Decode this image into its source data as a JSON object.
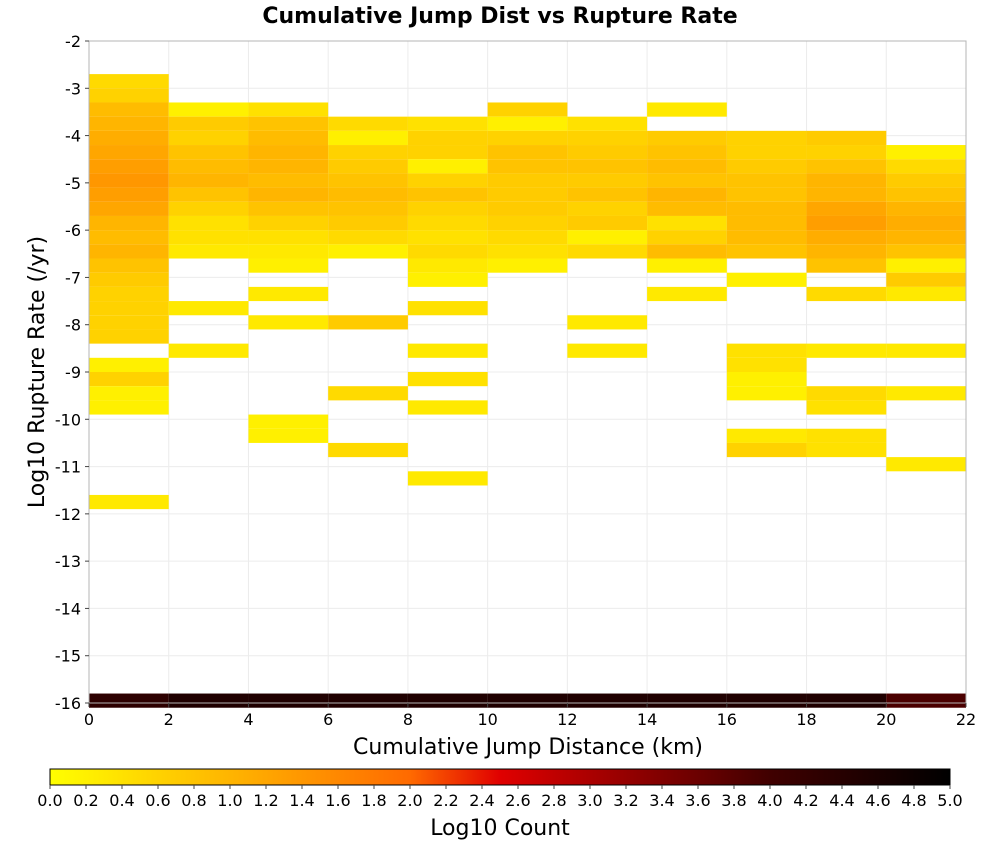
{
  "chart_data": {
    "type": "heatmap",
    "title": "Cumulative Jump Dist vs Rupture Rate",
    "xlabel": "Cumulative Jump Distance (km)",
    "ylabel": "Log10 Rupture Rate (/yr)",
    "xlim": [
      0,
      22
    ],
    "ylim": [
      -16,
      -2
    ],
    "x_bin_width": 2,
    "y_bin_height": 0.3,
    "grid": true,
    "xticks": [
      "0",
      "2",
      "4",
      "6",
      "8",
      "10",
      "12",
      "14",
      "16",
      "18",
      "20",
      "22"
    ],
    "yticks": [
      "-2",
      "-3",
      "-4",
      "-5",
      "-6",
      "-7",
      "-8",
      "-9",
      "-10",
      "-11",
      "-12",
      "-13",
      "-14",
      "-15",
      "-16"
    ],
    "colorbar": {
      "label": "Log10 Count",
      "range": [
        0,
        5
      ],
      "ticks": [
        "0.0",
        "0.2",
        "0.4",
        "0.6",
        "0.8",
        "1.0",
        "1.2",
        "1.4",
        "1.6",
        "1.8",
        "2.0",
        "2.2",
        "2.4",
        "2.6",
        "2.8",
        "3.0",
        "3.2",
        "3.4",
        "3.6",
        "3.8",
        "4.0",
        "4.2",
        "4.6",
        "4.8",
        "5.0"
      ],
      "ticks_full": [
        "0.0",
        "0.2",
        "0.4",
        "0.6",
        "0.8",
        "1.0",
        "1.2",
        "1.4",
        "1.6",
        "1.8",
        "2.0",
        "2.2",
        "2.4",
        "2.6",
        "2.8",
        "3.0",
        "3.2",
        "3.4",
        "3.6",
        "3.8",
        "4.0",
        "4.2",
        "4.4",
        "4.6",
        "4.8",
        "5.0"
      ]
    },
    "colorscale": [
      "#ffff00",
      "#ff6a00",
      "#e00000",
      "#400000",
      "#000000"
    ],
    "columns": [
      {
        "x0": 0,
        "cells": [
          [
            -2.85,
            0.5
          ],
          [
            -3.15,
            0.6
          ],
          [
            -3.45,
            0.9
          ],
          [
            -3.75,
            1.0
          ],
          [
            -4.05,
            1.1
          ],
          [
            -4.35,
            1.2
          ],
          [
            -4.65,
            1.3
          ],
          [
            -4.95,
            1.4
          ],
          [
            -5.25,
            1.3
          ],
          [
            -5.55,
            1.2
          ],
          [
            -5.85,
            1.0
          ],
          [
            -6.15,
            0.9
          ],
          [
            -6.45,
            1.0
          ],
          [
            -6.75,
            0.8
          ],
          [
            -7.05,
            0.7
          ],
          [
            -7.35,
            0.6
          ],
          [
            -7.65,
            0.6
          ],
          [
            -7.95,
            0.6
          ],
          [
            -8.25,
            0.6
          ],
          [
            -8.85,
            0.2
          ],
          [
            -9.15,
            0.6
          ],
          [
            -9.45,
            0.2
          ],
          [
            -9.75,
            0.2
          ],
          [
            -11.75,
            0.3
          ],
          [
            -15.95,
            4.3
          ]
        ]
      },
      {
        "x0": 2,
        "cells": [
          [
            -3.45,
            0.2
          ],
          [
            -3.75,
            0.7
          ],
          [
            -4.05,
            0.6
          ],
          [
            -4.35,
            0.8
          ],
          [
            -4.65,
            0.9
          ],
          [
            -4.95,
            1.0
          ],
          [
            -5.25,
            0.8
          ],
          [
            -5.55,
            0.6
          ],
          [
            -5.85,
            0.4
          ],
          [
            -6.15,
            0.4
          ],
          [
            -6.45,
            0.3
          ],
          [
            -7.65,
            0.3
          ],
          [
            -8.55,
            0.3
          ],
          [
            -15.95,
            4.5
          ]
        ]
      },
      {
        "x0": 4,
        "cells": [
          [
            -3.45,
            0.4
          ],
          [
            -3.75,
            0.8
          ],
          [
            -4.05,
            0.9
          ],
          [
            -4.35,
            1.0
          ],
          [
            -4.65,
            1.0
          ],
          [
            -4.95,
            0.9
          ],
          [
            -5.25,
            1.0
          ],
          [
            -5.55,
            0.8
          ],
          [
            -5.85,
            0.6
          ],
          [
            -6.15,
            0.4
          ],
          [
            -6.45,
            0.3
          ],
          [
            -6.75,
            0.2
          ],
          [
            -7.35,
            0.3
          ],
          [
            -7.95,
            0.3
          ],
          [
            -10.05,
            0.2
          ],
          [
            -10.35,
            0.2
          ],
          [
            -15.95,
            4.5
          ]
        ]
      },
      {
        "x0": 6,
        "cells": [
          [
            -3.75,
            0.5
          ],
          [
            -4.05,
            0.2
          ],
          [
            -4.35,
            0.6
          ],
          [
            -4.65,
            0.7
          ],
          [
            -4.95,
            0.8
          ],
          [
            -5.25,
            0.9
          ],
          [
            -5.55,
            0.8
          ],
          [
            -5.85,
            0.7
          ],
          [
            -6.15,
            0.5
          ],
          [
            -6.45,
            0.2
          ],
          [
            -7.95,
            0.7
          ],
          [
            -9.45,
            0.5
          ],
          [
            -10.65,
            0.5
          ],
          [
            -15.95,
            4.5
          ]
        ]
      },
      {
        "x0": 8,
        "cells": [
          [
            -3.75,
            0.4
          ],
          [
            -4.05,
            0.6
          ],
          [
            -4.35,
            0.6
          ],
          [
            -4.65,
            0.2
          ],
          [
            -4.95,
            0.6
          ],
          [
            -5.25,
            0.8
          ],
          [
            -5.55,
            0.6
          ],
          [
            -5.85,
            0.5
          ],
          [
            -6.15,
            0.4
          ],
          [
            -6.45,
            0.5
          ],
          [
            -6.75,
            0.3
          ],
          [
            -7.05,
            0.2
          ],
          [
            -7.65,
            0.4
          ],
          [
            -8.55,
            0.3
          ],
          [
            -9.15,
            0.4
          ],
          [
            -9.75,
            0.3
          ],
          [
            -11.25,
            0.3
          ],
          [
            -15.95,
            4.5
          ]
        ]
      },
      {
        "x0": 10,
        "cells": [
          [
            -3.45,
            0.6
          ],
          [
            -3.75,
            0.2
          ],
          [
            -4.05,
            0.6
          ],
          [
            -4.35,
            0.8
          ],
          [
            -4.65,
            0.8
          ],
          [
            -4.95,
            0.7
          ],
          [
            -5.25,
            0.7
          ],
          [
            -5.55,
            0.7
          ],
          [
            -5.85,
            0.6
          ],
          [
            -6.15,
            0.5
          ],
          [
            -6.45,
            0.4
          ],
          [
            -6.75,
            0.2
          ],
          [
            -15.95,
            4.5
          ]
        ]
      },
      {
        "x0": 12,
        "cells": [
          [
            -3.75,
            0.4
          ],
          [
            -4.05,
            0.6
          ],
          [
            -4.35,
            0.7
          ],
          [
            -4.65,
            0.8
          ],
          [
            -4.95,
            0.7
          ],
          [
            -5.25,
            0.8
          ],
          [
            -5.55,
            0.6
          ],
          [
            -5.85,
            0.7
          ],
          [
            -6.15,
            0.2
          ],
          [
            -6.45,
            0.5
          ],
          [
            -7.95,
            0.3
          ],
          [
            -8.55,
            0.3
          ],
          [
            -15.95,
            4.5
          ]
        ]
      },
      {
        "x0": 14,
        "cells": [
          [
            -3.45,
            0.3
          ],
          [
            -4.05,
            0.7
          ],
          [
            -4.35,
            0.8
          ],
          [
            -4.65,
            0.9
          ],
          [
            -4.95,
            0.8
          ],
          [
            -5.25,
            1.0
          ],
          [
            -5.55,
            0.9
          ],
          [
            -5.85,
            0.4
          ],
          [
            -6.15,
            0.6
          ],
          [
            -6.45,
            0.9
          ],
          [
            -6.75,
            0.2
          ],
          [
            -7.35,
            0.3
          ],
          [
            -15.95,
            4.5
          ]
        ]
      },
      {
        "x0": 16,
        "cells": [
          [
            -4.05,
            0.6
          ],
          [
            -4.35,
            0.6
          ],
          [
            -4.65,
            0.7
          ],
          [
            -4.95,
            0.8
          ],
          [
            -5.25,
            0.8
          ],
          [
            -5.55,
            0.9
          ],
          [
            -5.85,
            0.9
          ],
          [
            -6.15,
            0.9
          ],
          [
            -6.45,
            0.8
          ],
          [
            -7.05,
            0.2
          ],
          [
            -8.55,
            0.4
          ],
          [
            -8.85,
            0.4
          ],
          [
            -9.15,
            0.2
          ],
          [
            -9.45,
            0.2
          ],
          [
            -10.35,
            0.3
          ],
          [
            -10.65,
            0.6
          ],
          [
            -15.95,
            4.5
          ]
        ]
      },
      {
        "x0": 18,
        "cells": [
          [
            -4.05,
            0.7
          ],
          [
            -4.35,
            0.6
          ],
          [
            -4.65,
            0.8
          ],
          [
            -4.95,
            1.0
          ],
          [
            -5.25,
            1.0
          ],
          [
            -5.55,
            1.2
          ],
          [
            -5.85,
            1.3
          ],
          [
            -6.15,
            1.1
          ],
          [
            -6.45,
            1.0
          ],
          [
            -6.75,
            0.8
          ],
          [
            -7.35,
            0.5
          ],
          [
            -8.55,
            0.3
          ],
          [
            -9.45,
            0.5
          ],
          [
            -9.75,
            0.4
          ],
          [
            -10.35,
            0.4
          ],
          [
            -10.65,
            0.4
          ],
          [
            -15.95,
            4.5
          ]
        ]
      },
      {
        "x0": 20,
        "cells": [
          [
            -4.35,
            0.2
          ],
          [
            -4.65,
            0.5
          ],
          [
            -4.95,
            0.7
          ],
          [
            -5.25,
            0.8
          ],
          [
            -5.55,
            1.0
          ],
          [
            -5.85,
            1.1
          ],
          [
            -6.15,
            1.0
          ],
          [
            -6.45,
            0.8
          ],
          [
            -6.75,
            0.2
          ],
          [
            -7.05,
            0.7
          ],
          [
            -7.35,
            0.3
          ],
          [
            -8.55,
            0.3
          ],
          [
            -9.45,
            0.3
          ],
          [
            -10.95,
            0.3
          ],
          [
            -15.95,
            3.9
          ]
        ]
      }
    ]
  }
}
